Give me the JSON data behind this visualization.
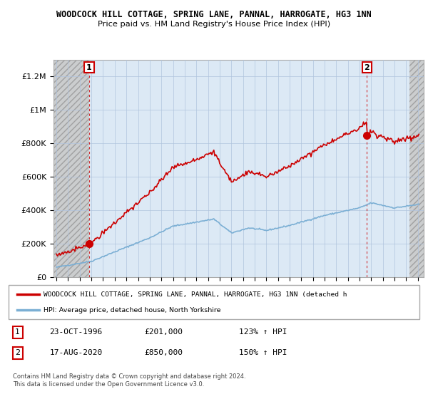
{
  "title1": "WOODCOCK HILL COTTAGE, SPRING LANE, PANNAL, HARROGATE, HG3 1NN",
  "title2": "Price paid vs. HM Land Registry's House Price Index (HPI)",
  "ylim": [
    0,
    1300000
  ],
  "yticks": [
    0,
    200000,
    400000,
    600000,
    800000,
    1000000,
    1200000
  ],
  "ytick_labels": [
    "£0",
    "£200K",
    "£400K",
    "£600K",
    "£800K",
    "£1M",
    "£1.2M"
  ],
  "sale1": {
    "date_num": 1996.81,
    "price": 201000,
    "label": "1"
  },
  "sale2": {
    "date_num": 2020.63,
    "price": 850000,
    "label": "2"
  },
  "legend_line1": "WOODCOCK HILL COTTAGE, SPRING LANE, PANNAL, HARROGATE, HG3 1NN (detached h",
  "legend_line2": "HPI: Average price, detached house, North Yorkshire",
  "table_row1": [
    "1",
    "23-OCT-1996",
    "£201,000",
    "123% ↑ HPI"
  ],
  "table_row2": [
    "2",
    "17-AUG-2020",
    "£850,000",
    "150% ↑ HPI"
  ],
  "footnote1": "Contains HM Land Registry data © Crown copyright and database right 2024.",
  "footnote2": "This data is licensed under the Open Government Licence v3.0.",
  "red_color": "#cc0000",
  "blue_color": "#7bafd4",
  "plot_bg": "#dce9f5",
  "hatch_bg": "#c8c8c8",
  "xlim": [
    1993.75,
    2025.5
  ],
  "xtick_years": [
    1994,
    1995,
    1996,
    1997,
    1998,
    1999,
    2000,
    2001,
    2002,
    2003,
    2004,
    2005,
    2006,
    2007,
    2008,
    2009,
    2010,
    2011,
    2012,
    2013,
    2014,
    2015,
    2016,
    2017,
    2018,
    2019,
    2020,
    2021,
    2022,
    2023,
    2024,
    2025
  ],
  "hatch_left_end": 1996.81,
  "hatch_right_start": 2024.25
}
